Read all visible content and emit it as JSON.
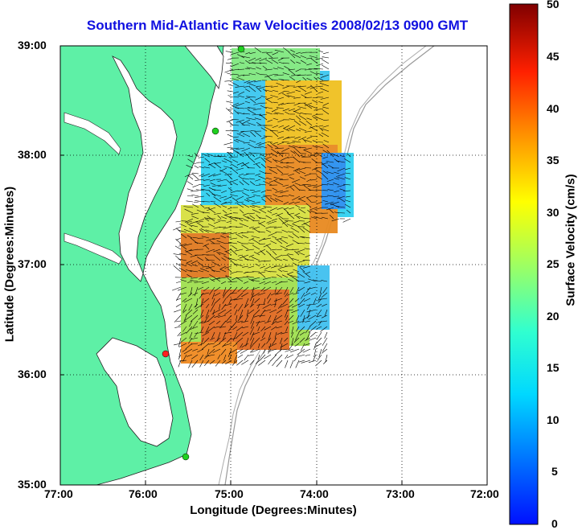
{
  "title": "Southern Mid-Atlantic Raw Velocities 2008/02/13 0900 GMT",
  "x_axis": {
    "label": "Longitude (Degrees:Minutes)",
    "ticks": [
      "77:00",
      "76:00",
      "75:00",
      "74:00",
      "73:00",
      "72:00"
    ]
  },
  "y_axis": {
    "label": "Latitude (Degrees:Minutes)",
    "ticks": [
      "39:00",
      "38:00",
      "37:00",
      "36:00",
      "35:00"
    ]
  },
  "colorbar": {
    "label": "Surface Velocity (cm/s)",
    "ticks": [
      "50",
      "45",
      "40",
      "35",
      "30",
      "25",
      "20",
      "15",
      "10",
      "5",
      "0"
    ],
    "range": [
      0,
      50
    ]
  },
  "map": {
    "extent_lon": [
      -77,
      -72
    ],
    "extent_lat": [
      35,
      39
    ],
    "land_color": "#5ef0a6",
    "grid": "dotted",
    "stations": [
      {
        "type": "green",
        "lon": -74.86,
        "lat": 38.95
      },
      {
        "type": "green",
        "lon": -75.16,
        "lat": 38.2
      },
      {
        "type": "red",
        "lon": -75.75,
        "lat": 36.18
      },
      {
        "type": "green",
        "lon": -75.52,
        "lat": 35.26
      }
    ]
  }
}
